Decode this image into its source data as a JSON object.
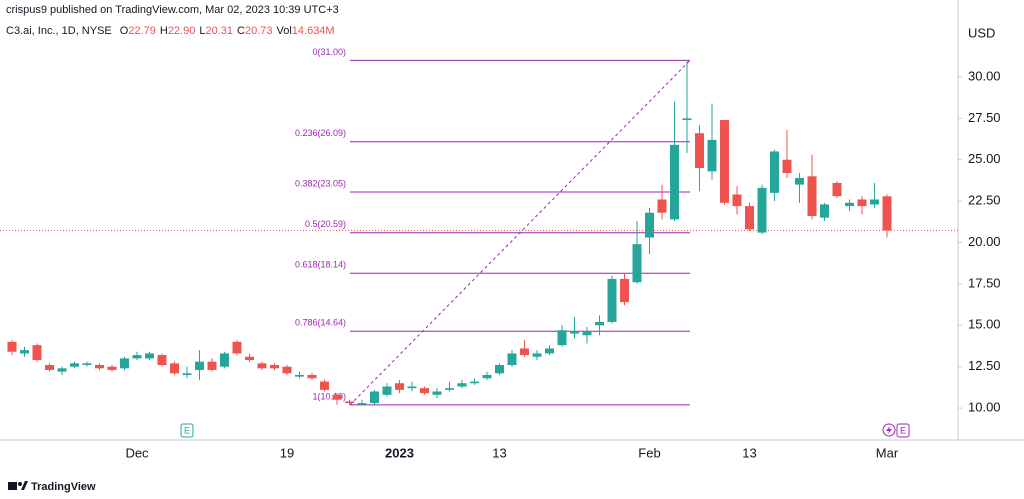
{
  "header": "crispus9 published on TradingView.com, Mar 02, 2023 10:39 UTC+3",
  "footer": "TradingView",
  "chart_data": {
    "type": "candlestick",
    "symbol": "C3.ai, Inc., 1D, NYSE",
    "legend_values": [
      {
        "prefix": "O",
        "text": "22.79"
      },
      {
        "prefix": "H",
        "text": "22.90"
      },
      {
        "prefix": "L",
        "text": "20.31"
      },
      {
        "prefix": "C",
        "text": "20.73"
      },
      {
        "prefix": "Vol",
        "text": "14.634M"
      }
    ],
    "y_axis_label": "USD",
    "up_color": "#26a69a",
    "down_color": "#ef5350",
    "categories": [
      null,
      null,
      null,
      null,
      null,
      null,
      null,
      null,
      null,
      null,
      "Dec",
      null,
      null,
      null,
      null,
      null,
      null,
      null,
      null,
      null,
      null,
      null,
      "19",
      null,
      null,
      null,
      null,
      null,
      null,
      null,
      null,
      "2023",
      null,
      null,
      null,
      null,
      null,
      null,
      null,
      "13",
      null,
      null,
      null,
      null,
      null,
      null,
      null,
      null,
      null,
      null,
      null,
      "Feb",
      null,
      null,
      null,
      null,
      null,
      null,
      null,
      "13",
      null,
      null,
      null,
      null,
      null,
      null,
      null,
      null,
      null,
      null,
      "Mar"
    ],
    "open": [
      14.0,
      13.3,
      13.8,
      12.6,
      12.2,
      12.5,
      12.6,
      12.6,
      12.5,
      12.4,
      13.0,
      13.0,
      13.2,
      12.7,
      12.0,
      12.3,
      12.8,
      12.5,
      14.0,
      13.1,
      12.7,
      12.6,
      12.5,
      11.9,
      12.0,
      11.6,
      10.8,
      10.4,
      10.2,
      10.3,
      10.8,
      11.5,
      11.2,
      11.2,
      10.8,
      11.1,
      11.3,
      11.5,
      11.8,
      12.1,
      12.6,
      13.6,
      13.1,
      13.3,
      13.8,
      14.5,
      14.4,
      15.0,
      15.2,
      17.8,
      17.6,
      20.3,
      22.6,
      21.4,
      27.4,
      26.6,
      24.3,
      27.4,
      22.9,
      22.2,
      20.6,
      23.0,
      25.0,
      23.5,
      24.0,
      21.5,
      23.6,
      22.2,
      22.6,
      22.3,
      22.79
    ],
    "high": [
      14.1,
      13.7,
      13.9,
      12.7,
      12.5,
      12.8,
      12.8,
      12.7,
      12.6,
      13.1,
      13.4,
      13.4,
      13.3,
      12.8,
      12.5,
      13.5,
      13.0,
      13.4,
      14.1,
      13.3,
      12.8,
      12.7,
      12.6,
      12.2,
      12.1,
      11.7,
      10.9,
      10.5,
      10.5,
      11.1,
      11.5,
      11.7,
      11.6,
      11.3,
      11.2,
      11.6,
      11.7,
      11.8,
      12.2,
      12.7,
      13.5,
      14.1,
      13.5,
      13.8,
      15.0,
      15.5,
      14.9,
      15.6,
      18.0,
      18.1,
      21.3,
      22.1,
      23.5,
      28.5,
      31.0,
      27.1,
      28.4,
      27.4,
      23.4,
      22.4,
      23.5,
      25.6,
      26.8,
      24.2,
      25.3,
      22.4,
      23.7,
      22.6,
      22.8,
      23.6,
      22.9
    ],
    "low": [
      13.2,
      13.1,
      12.8,
      12.2,
      12.0,
      12.4,
      12.5,
      12.3,
      12.2,
      12.3,
      12.9,
      12.9,
      12.5,
      12.0,
      11.8,
      11.7,
      12.2,
      12.4,
      13.2,
      12.8,
      12.3,
      12.3,
      12.0,
      11.8,
      11.7,
      11.0,
      10.2,
      10.19,
      10.2,
      10.2,
      10.7,
      10.9,
      11.0,
      10.8,
      10.6,
      11.0,
      11.2,
      11.4,
      11.7,
      12.0,
      12.5,
      13.1,
      12.9,
      13.2,
      13.7,
      14.2,
      13.9,
      14.4,
      15.1,
      16.2,
      17.5,
      19.3,
      21.4,
      21.3,
      25.4,
      23.1,
      23.8,
      22.3,
      21.7,
      20.7,
      20.5,
      22.5,
      23.9,
      22.4,
      21.4,
      21.3,
      22.7,
      21.9,
      21.7,
      22.1,
      20.31
    ],
    "close": [
      13.4,
      13.5,
      12.9,
      12.3,
      12.4,
      12.7,
      12.7,
      12.4,
      12.3,
      13.0,
      13.2,
      13.3,
      12.6,
      12.1,
      12.1,
      12.8,
      12.3,
      13.3,
      13.3,
      12.9,
      12.4,
      12.4,
      12.1,
      12.0,
      11.8,
      11.1,
      10.5,
      10.3,
      10.3,
      11.0,
      11.3,
      11.1,
      11.3,
      10.9,
      11.0,
      11.2,
      11.5,
      11.6,
      12.0,
      12.6,
      13.3,
      13.2,
      13.3,
      13.6,
      14.7,
      14.6,
      14.6,
      15.2,
      17.8,
      16.4,
      19.9,
      21.8,
      21.8,
      25.9,
      27.5,
      24.5,
      26.2,
      22.4,
      22.2,
      20.8,
      23.3,
      25.5,
      24.2,
      23.9,
      21.6,
      22.3,
      22.8,
      22.4,
      22.2,
      22.6,
      20.73
    ],
    "ylim": [
      8.07,
      34.65
    ],
    "yticks": [
      {
        "value": 10,
        "label": "10.00"
      },
      {
        "value": 12.5,
        "label": "12.50"
      },
      {
        "value": 15,
        "label": "15.00"
      },
      {
        "value": 17.5,
        "label": "17.50"
      },
      {
        "value": 20,
        "label": "20.00"
      },
      {
        "value": 22.5,
        "label": "22.50"
      },
      {
        "value": 25,
        "label": "25.00"
      },
      {
        "value": 27.5,
        "label": "27.50"
      },
      {
        "value": 30,
        "label": "30.00"
      }
    ],
    "fib_levels": [
      {
        "value": 31.0,
        "label": "0(31.00)"
      },
      {
        "value": 26.09,
        "label": "0.236(26.09)"
      },
      {
        "value": 23.05,
        "label": "0.382(23.05)"
      },
      {
        "value": 20.59,
        "label": "0.5(20.59)"
      },
      {
        "value": 18.14,
        "label": "0.618(18.14)"
      },
      {
        "value": 14.64,
        "label": "0.786(14.64)"
      },
      {
        "value": 10.19,
        "label": "1(10.19)"
      }
    ],
    "fib_color": "#9c27b0",
    "last_price": 20.73,
    "event_markers": [
      "E",
      "E"
    ]
  }
}
